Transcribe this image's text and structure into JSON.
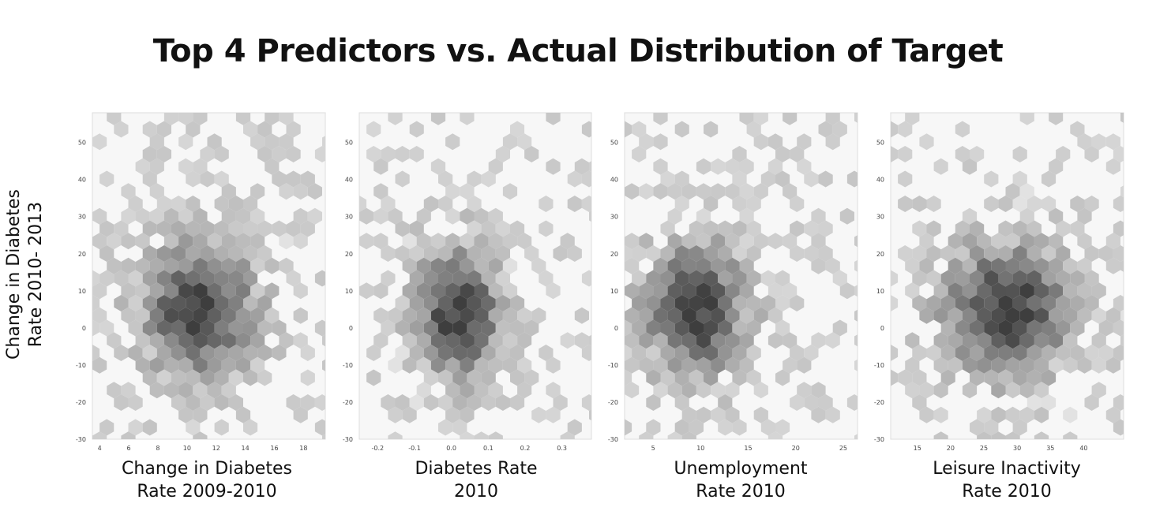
{
  "title": "Top 4 Predictors vs. Actual Distribution of Target",
  "ylabel_lines": [
    "Change in Diabetes",
    "Rate 2010- 2013"
  ],
  "colors": {
    "panel_bg": "#f7f7f7",
    "panel_border": "#dddddd",
    "hex_light": "#e2e2e2",
    "hex_dark": "#3e3e3e"
  },
  "chart_data": [
    {
      "type": "heatmap",
      "subtype": "hexbin",
      "xlabel_lines": [
        "Change in Diabetes",
        "Rate 2009-2010"
      ],
      "xlim": [
        3.5,
        19.5
      ],
      "ylim": [
        -30,
        58
      ],
      "xticks": [
        "4",
        "6",
        "8",
        "10",
        "12",
        "14",
        "16",
        "18"
      ],
      "xtick_values": [
        4,
        6,
        8,
        10,
        12,
        14,
        16,
        18
      ],
      "yticks": [
        "-30",
        "-20",
        "-10",
        "0",
        "10",
        "20",
        "30",
        "40",
        "50"
      ],
      "ytick_values": [
        -30,
        -20,
        -10,
        0,
        10,
        20,
        30,
        40,
        50
      ],
      "center": [
        10.8,
        5
      ],
      "spread": [
        2.6,
        12
      ],
      "grid": false
    },
    {
      "type": "heatmap",
      "subtype": "hexbin",
      "xlabel_lines": [
        "Diabetes Rate",
        "2010"
      ],
      "xlim": [
        -0.25,
        0.38
      ],
      "ylim": [
        -30,
        58
      ],
      "xticks": [
        "-0.2",
        "-0.1",
        "0.0",
        "0.1",
        "0.2",
        "0.3"
      ],
      "xtick_values": [
        -0.2,
        -0.1,
        0.0,
        0.1,
        0.2,
        0.3
      ],
      "yticks": [
        "-30",
        "-20",
        "-10",
        "0",
        "10",
        "20",
        "30",
        "40",
        "50"
      ],
      "ytick_values": [
        -30,
        -20,
        -10,
        0,
        10,
        20,
        30,
        40,
        50
      ],
      "center": [
        0.02,
        4
      ],
      "spread": [
        0.08,
        12
      ],
      "grid": false
    },
    {
      "type": "heatmap",
      "subtype": "hexbin",
      "xlabel_lines": [
        "Unemployment",
        "Rate 2010"
      ],
      "xlim": [
        2,
        26.5
      ],
      "ylim": [
        -30,
        58
      ],
      "xticks": [
        "5",
        "10",
        "15",
        "20",
        "25"
      ],
      "xtick_values": [
        5,
        10,
        15,
        20,
        25
      ],
      "yticks": [
        "-30",
        "-20",
        "-10",
        "0",
        "10",
        "20",
        "30",
        "40",
        "50"
      ],
      "ytick_values": [
        -30,
        -20,
        -10,
        0,
        10,
        20,
        30,
        40,
        50
      ],
      "center": [
        9.5,
        5
      ],
      "spread": [
        3.6,
        12
      ],
      "grid": false
    },
    {
      "type": "heatmap",
      "subtype": "hexbin",
      "xlabel_lines": [
        "Leisure Inactivity",
        "Rate 2010"
      ],
      "xlim": [
        11,
        46
      ],
      "ylim": [
        -30,
        58
      ],
      "xticks": [
        "15",
        "20",
        "25",
        "30",
        "35",
        "40"
      ],
      "xtick_values": [
        15,
        20,
        25,
        30,
        35,
        40
      ],
      "yticks": [
        "-30",
        "-20",
        "-10",
        "0",
        "10",
        "20",
        "30",
        "40",
        "50"
      ],
      "ytick_values": [
        -30,
        -20,
        -10,
        0,
        10,
        20,
        30,
        40,
        50
      ],
      "center": [
        28.5,
        5
      ],
      "spread": [
        6.5,
        12
      ],
      "grid": false
    }
  ]
}
